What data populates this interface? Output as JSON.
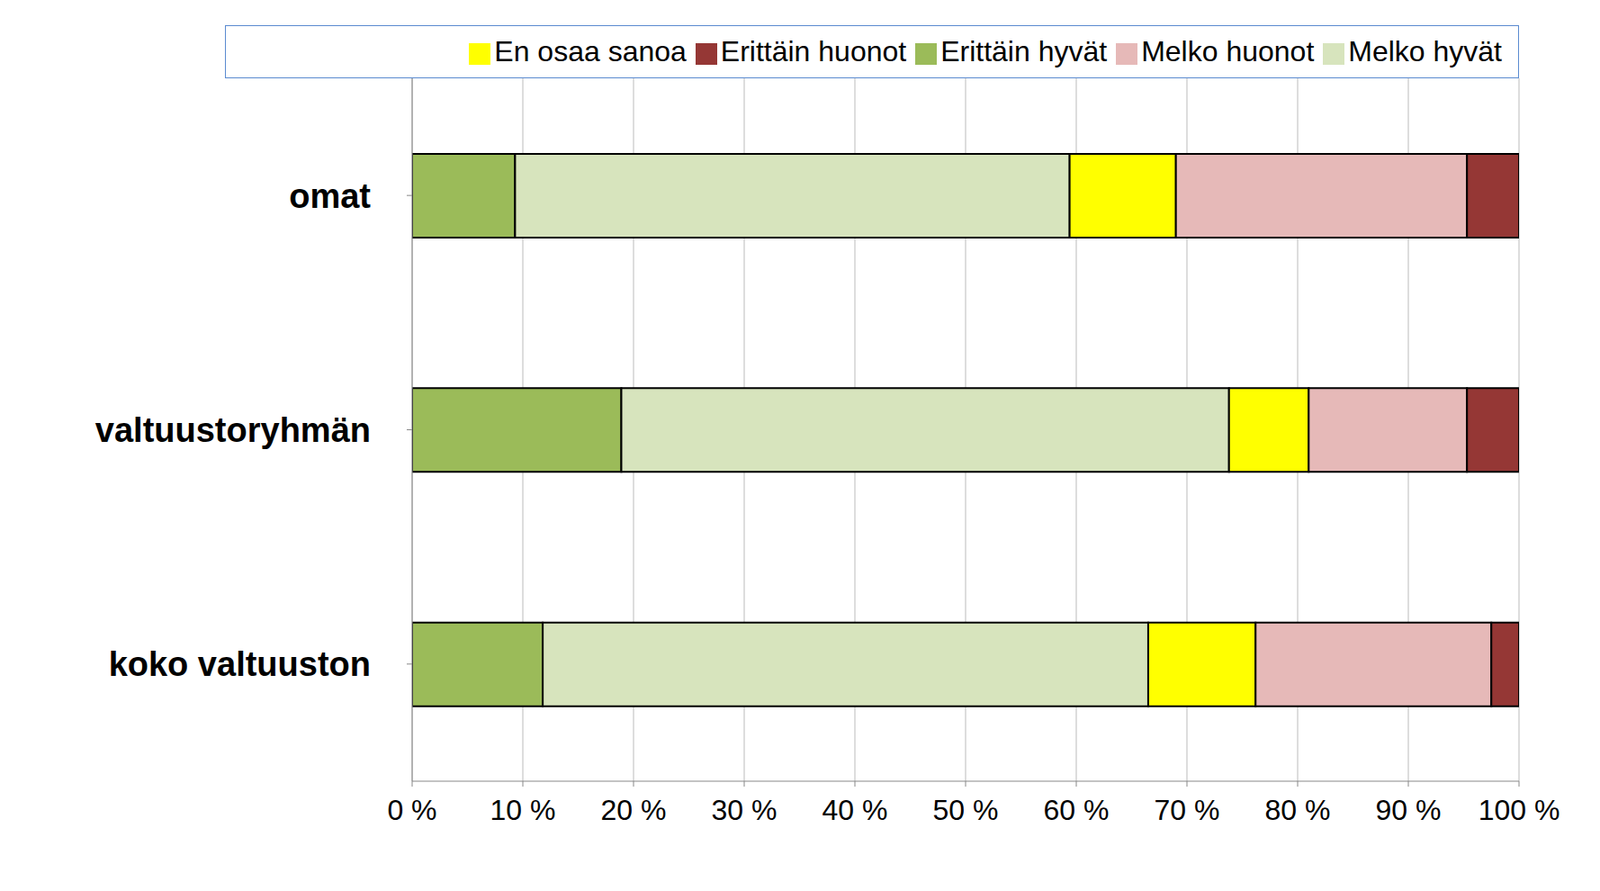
{
  "chart_data": {
    "type": "bar",
    "orientation": "horizontal",
    "stacked": true,
    "grid": true,
    "legend": "top",
    "categories": [
      "omat",
      "valtuustoryhmän",
      "koko valtuuston"
    ],
    "series": [
      {
        "name": "Erittäin hyvät",
        "color": "#9bbb59",
        "values": [
          9.3,
          18.9,
          11.8
        ]
      },
      {
        "name": "Melko hyvät",
        "color": "#d7e4bd",
        "values": [
          50.1,
          54.9,
          54.7
        ]
      },
      {
        "name": "En osaa sanoa",
        "color": "#ffff00",
        "values": [
          9.6,
          7.2,
          9.7
        ]
      },
      {
        "name": "Melko huonot",
        "color": "#e6b9b8",
        "values": [
          26.3,
          14.3,
          21.3
        ]
      },
      {
        "name": "Erittäin huonot",
        "color": "#953735",
        "values": [
          4.7,
          4.7,
          2.5
        ]
      }
    ],
    "xlim": [
      0,
      100
    ],
    "xticks": [
      {
        "value": 0,
        "label": "0 %"
      },
      {
        "value": 10,
        "label": "10 %"
      },
      {
        "value": 20,
        "label": "20 %"
      },
      {
        "value": 30,
        "label": "30 %"
      },
      {
        "value": 40,
        "label": "40 %"
      },
      {
        "value": 50,
        "label": "50 %"
      },
      {
        "value": 60,
        "label": "60 %"
      },
      {
        "value": 70,
        "label": "70 %"
      },
      {
        "value": 80,
        "label": "80 %"
      },
      {
        "value": 90,
        "label": "90 %"
      },
      {
        "value": 100,
        "label": "100 %"
      }
    ]
  }
}
